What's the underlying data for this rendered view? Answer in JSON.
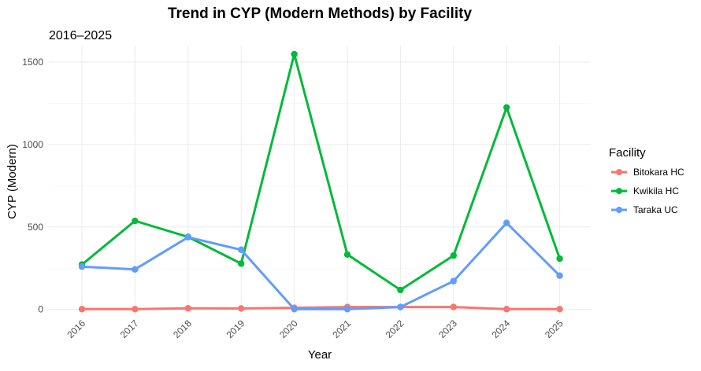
{
  "chart_data": {
    "type": "line",
    "title": "Trend in CYP (Modern Methods) by Facility",
    "subtitle": "2016–2025",
    "xlabel": "Year",
    "ylabel": "CYP (Modern)",
    "x": [
      "2016",
      "2017",
      "2018",
      "2019",
      "2020",
      "2021",
      "2022",
      "2023",
      "2024",
      "2025"
    ],
    "yticks": [
      0,
      500,
      1000,
      1500
    ],
    "ylim": [
      -30,
      1600
    ],
    "grid": true,
    "legend_title": "Facility",
    "legend_position": "right",
    "series": [
      {
        "name": "Bitokara HC",
        "color": "#F8766D",
        "values": [
          2,
          2,
          7,
          6,
          10,
          15,
          15,
          15,
          2,
          2
        ]
      },
      {
        "name": "Kwikila HC",
        "color": "#00BA38",
        "values": [
          272,
          537,
          440,
          278,
          1548,
          333,
          118,
          327,
          1225,
          308
        ]
      },
      {
        "name": "Taraka UC",
        "color": "#619CFF",
        "values": [
          260,
          243,
          438,
          362,
          2,
          2,
          15,
          172,
          525,
          205
        ]
      }
    ]
  }
}
